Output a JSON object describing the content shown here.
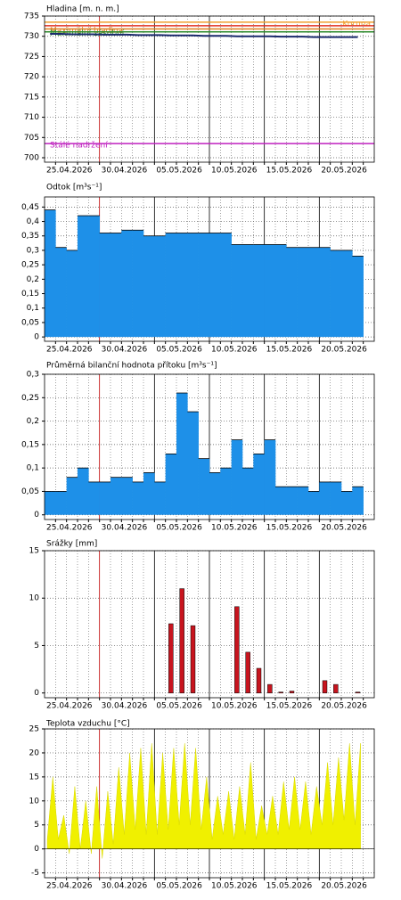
{
  "chart_data": [
    {
      "type": "line",
      "title": "Hladina [m. n. m.]",
      "categories": [
        "25.04.2026",
        null,
        null,
        null,
        null,
        "30.04.2026",
        null,
        null,
        null,
        null,
        "05.05.2026",
        null,
        null,
        null,
        null,
        "10.05.2026",
        null,
        null,
        null,
        null,
        "15.05.2026",
        null,
        null,
        null,
        null,
        "20.05.2026",
        null,
        null,
        null,
        null
      ],
      "ylim": [
        698.9,
        735
      ],
      "yticks": [
        700,
        705,
        710,
        715,
        720,
        725,
        730,
        735
      ],
      "grid": true,
      "thresholds": [
        {
          "label": "Koruna",
          "value": 733.5,
          "color": "#f0a030"
        },
        {
          "value": 732.6,
          "color": "#e03020"
        },
        {
          "label": "Maximální hladina",
          "value": 731.8,
          "color": "#e08020"
        },
        {
          "label": "Maximální zásobní",
          "value": 731.1,
          "color": "#2e8b2e"
        },
        {
          "label": "Stálé nadržení",
          "value": 703.5,
          "color": "#c020c0"
        }
      ],
      "series": [
        {
          "name": "Hladina",
          "color": "#1a2a6c",
          "values": [
            730.6,
            730.6,
            730.5,
            730.5,
            730.5,
            730.4,
            730.4,
            730.4,
            730.3,
            730.3,
            730.3,
            730.2,
            730.2,
            730.2,
            730.1,
            730.1,
            730.1,
            730.0,
            730.0,
            730.0,
            730.0,
            729.9,
            729.9,
            729.9,
            729.8,
            729.8,
            729.8,
            729.8,
            729.8,
            null
          ]
        }
      ]
    },
    {
      "type": "step",
      "title": "Odtok [m³s⁻¹]",
      "color": "#1e90e8",
      "categories": [
        "25.04.2026",
        null,
        null,
        null,
        null,
        "30.04.2026",
        null,
        null,
        null,
        null,
        "05.05.2026",
        null,
        null,
        null,
        null,
        "10.05.2026",
        null,
        null,
        null,
        null,
        "15.05.2026",
        null,
        null,
        null,
        null,
        "20.05.2026",
        null,
        null,
        null,
        null
      ],
      "values": [
        0.44,
        0.31,
        0.3,
        0.42,
        0.42,
        0.36,
        0.36,
        0.37,
        0.37,
        0.35,
        0.35,
        0.36,
        0.36,
        0.36,
        0.36,
        0.36,
        0.36,
        0.32,
        0.32,
        0.32,
        0.32,
        0.32,
        0.31,
        0.31,
        0.31,
        0.31,
        0.3,
        0.3,
        0.28,
        null
      ],
      "ylim": [
        -0.015,
        0.485
      ],
      "yticks": [
        0,
        {
          "value": 0.05,
          "label": "0,05"
        },
        {
          "value": 0.1,
          "label": "0,1"
        },
        {
          "value": 0.15,
          "label": "0,15"
        },
        {
          "value": 0.2,
          "label": "0,2"
        },
        {
          "value": 0.25,
          "label": "0,25"
        },
        {
          "value": 0.3,
          "label": "0,3"
        },
        {
          "value": 0.35,
          "label": "0,35"
        },
        {
          "value": 0.4,
          "label": "0,4"
        },
        {
          "value": 0.45,
          "label": "0,45"
        }
      ],
      "grid": true
    },
    {
      "type": "step",
      "title": "Průměrná bilanční hodnota přítoku [m³s⁻¹]",
      "color": "#1e90e8",
      "categories": [
        "25.04.2026",
        null,
        null,
        null,
        null,
        "30.04.2026",
        null,
        null,
        null,
        null,
        "05.05.2026",
        null,
        null,
        null,
        null,
        "10.05.2026",
        null,
        null,
        null,
        null,
        "15.05.2026",
        null,
        null,
        null,
        null,
        "20.05.2026",
        null,
        null,
        null,
        null
      ],
      "values": [
        0.05,
        0.05,
        0.08,
        0.1,
        0.07,
        0.07,
        0.08,
        0.08,
        0.07,
        0.09,
        0.07,
        0.13,
        0.26,
        0.22,
        0.12,
        0.09,
        0.1,
        0.16,
        0.1,
        0.13,
        0.16,
        0.06,
        0.06,
        0.06,
        0.05,
        0.07,
        0.07,
        0.05,
        0.06,
        null
      ],
      "ylim": [
        -0.01,
        0.3
      ],
      "yticks": [
        0,
        {
          "value": 0.05,
          "label": "0,05"
        },
        {
          "value": 0.1,
          "label": "0,1"
        },
        {
          "value": 0.15,
          "label": "0,15"
        },
        {
          "value": 0.2,
          "label": "0,2"
        },
        {
          "value": 0.25,
          "label": "0,25"
        },
        {
          "value": 0.3,
          "label": "0,3"
        }
      ],
      "grid": true
    },
    {
      "type": "bar",
      "title": "Srážky [mm]",
      "color": "#c8141e",
      "categories": [
        "25.04.2026",
        null,
        null,
        null,
        null,
        "30.04.2026",
        null,
        null,
        null,
        null,
        "05.05.2026",
        null,
        null,
        null,
        null,
        "10.05.2026",
        null,
        null,
        null,
        null,
        "15.05.2026",
        null,
        null,
        null,
        null,
        "20.05.2026",
        null,
        null,
        null,
        null
      ],
      "values": [
        0,
        0,
        0,
        0,
        0,
        0,
        0,
        0,
        0,
        0,
        0,
        7.3,
        11,
        7.1,
        0,
        0,
        0,
        9.1,
        4.3,
        2.6,
        0.9,
        0.1,
        0.2,
        0,
        0,
        1.3,
        0.9,
        0,
        0.1,
        null
      ],
      "ylim": [
        -0.5,
        15
      ],
      "yticks": [
        0,
        5,
        10,
        15
      ],
      "grid": true
    },
    {
      "type": "area",
      "title": "Teplota vzduchu [°C]",
      "color": "#f0f000",
      "categories": [
        "25.04.2026",
        null,
        null,
        null,
        null,
        null,
        null,
        null,
        null,
        null,
        "30.04.2026",
        null,
        null,
        null,
        null,
        null,
        null,
        null,
        null,
        null,
        "05.05.2026",
        null,
        null,
        null,
        null,
        null,
        null,
        null,
        null,
        null,
        "10.05.2026",
        null,
        null,
        null,
        null,
        null,
        null,
        null,
        null,
        null,
        "15.05.2026",
        null,
        null,
        null,
        null,
        null,
        null,
        null,
        null,
        null,
        "20.05.2026",
        null,
        null,
        null,
        null,
        null,
        null,
        null,
        null,
        null
      ],
      "values": [
        2,
        15,
        2,
        7,
        -1,
        13,
        0,
        10,
        -1,
        13,
        -2,
        12,
        1,
        17,
        3,
        20,
        4,
        21,
        3,
        22,
        3,
        20,
        4,
        21,
        5,
        22,
        5,
        21,
        4,
        15,
        2,
        11,
        3,
        12,
        2,
        13,
        3,
        18,
        2,
        9,
        3,
        11,
        3,
        14,
        4,
        15,
        4,
        14,
        3,
        13,
        5,
        18,
        5,
        19,
        6,
        22,
        5,
        22,
        null,
        null
      ],
      "ylim": [
        -6,
        25
      ],
      "yticks": [
        -5,
        0,
        5,
        10,
        15,
        20,
        25
      ],
      "grid": true
    }
  ]
}
